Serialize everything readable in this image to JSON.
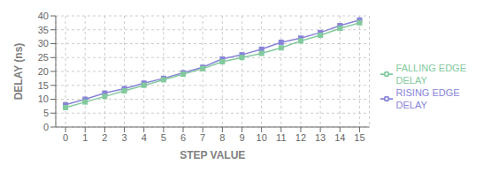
{
  "chart_data": {
    "type": "line",
    "x": [
      0,
      1,
      2,
      3,
      4,
      5,
      6,
      7,
      8,
      9,
      10,
      11,
      12,
      13,
      14,
      15
    ],
    "series": [
      {
        "name": "RISING EDGE\nDELAY",
        "color": "#8884d8",
        "marker": "square",
        "values": [
          8.0,
          10.0,
          12.2,
          13.8,
          15.8,
          17.5,
          19.5,
          21.5,
          24.5,
          26.0,
          28.0,
          30.5,
          32.0,
          34.0,
          36.5,
          38.5
        ]
      },
      {
        "name": "FALLING EDGE\nDELAY",
        "color": "#82ca9d",
        "marker": "square",
        "values": [
          7.0,
          9.0,
          11.0,
          13.0,
          15.0,
          17.0,
          19.0,
          21.0,
          23.5,
          25.0,
          26.5,
          28.5,
          31.0,
          33.0,
          35.5,
          37.5
        ]
      }
    ],
    "xlabel": "STEP VALUE",
    "ylabel": "DELAY (ns)",
    "xlim": [
      -0.5,
      15.5
    ],
    "xticks": [
      0,
      1,
      2,
      3,
      4,
      5,
      6,
      7,
      8,
      9,
      10,
      11,
      12,
      13,
      14,
      15
    ],
    "ylim": [
      0,
      40
    ],
    "yticks": [
      0,
      5,
      10,
      15,
      20,
      25,
      30,
      35,
      40
    ],
    "grid": true,
    "legend": "right"
  }
}
